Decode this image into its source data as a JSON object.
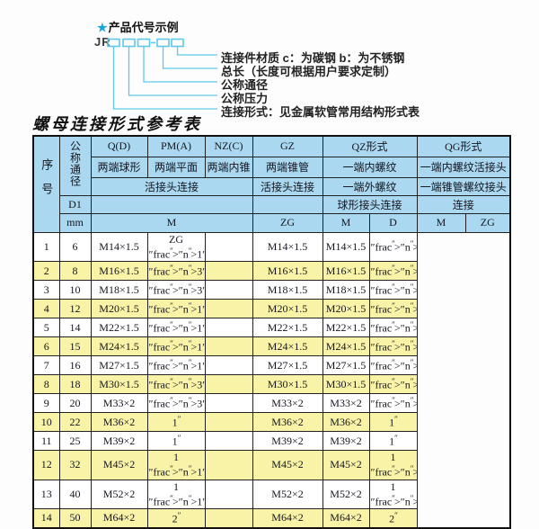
{
  "colors": {
    "header_blue": "#a9d8f0",
    "row_yellow": "#f8f3a6",
    "line_cyan": "#5fc8e8",
    "star_blue": "#18a6da"
  },
  "diagram": {
    "star": "★",
    "title": "产品代号示例",
    "prefix": "JR",
    "labels": [
      "连接件材质  c：为碳钢  b：为不锈钢",
      "总长（长度可根据用户要求定制）",
      "公称通径",
      "公称压力",
      "连接形式：见金属软管常用结构形式表"
    ]
  },
  "table_title": "螺母连接形式参考表",
  "table": {
    "header": {
      "seq": "序号",
      "dn": "公称通径",
      "d1": "D1",
      "mm": "mm",
      "q": "Q(D)",
      "q_sub": "两端球形",
      "pm": "PM(A)",
      "pm_sub": "两端平面",
      "nz": "NZ(C)",
      "nz_sub": "两端内锥",
      "union_conn": "活接头连接",
      "m_label": "M",
      "gz": "GZ",
      "gz_sub": "两端锥管",
      "gz_conn": "活接头连接",
      "gz_thread": "ZG",
      "qz": "QZ形式",
      "qz_sub1": "一端内螺纹",
      "qz_sub2": "一端外螺纹",
      "qz_conn": "球形接头连接",
      "qz_m": "M",
      "qz_d": "D",
      "qg": "QG形式",
      "qg_sub1": "一端内螺纹活接头",
      "qg_sub2": "一端锥管螺纹接头",
      "qg_conn": "连接",
      "qg_m": "M",
      "qg_zg": "ZG"
    },
    "rows": [
      {
        "no": "1",
        "mm": "6",
        "m": "M14×1.5",
        "gz": "ZG 1/4\"",
        "qz_m": "",
        "qz_d": "M14×1.5",
        "qg_m": "M14×1.5",
        "qg_zg": "1/4\""
      },
      {
        "no": "2",
        "mm": "8",
        "m": "M16×1.5",
        "gz": "3/8\"",
        "qz_m": "",
        "qz_d": "M16×1.5",
        "qg_m": "M16×1.5",
        "qg_zg": "3/8\""
      },
      {
        "no": "3",
        "mm": "10",
        "m": "M18×1.5",
        "gz": "3/8\"",
        "qz_m": "",
        "qz_d": "M18×1.5",
        "qg_m": "M18×1.5",
        "qg_zg": "3/8\""
      },
      {
        "no": "4",
        "mm": "12",
        "m": "M20×1.5",
        "gz": "1/2\"",
        "qz_m": "",
        "qz_d": "M20×1.5",
        "qg_m": "M20×1.5",
        "qg_zg": "1/2\""
      },
      {
        "no": "5",
        "mm": "14",
        "m": "M22×1.5",
        "gz": "1/2\"",
        "qz_m": "",
        "qz_d": "M22×1.5",
        "qg_m": "M22×1.5",
        "qg_zg": "1/2\""
      },
      {
        "no": "6",
        "mm": "15",
        "m": "M24×1.5",
        "gz": "1/2\"",
        "qz_m": "",
        "qz_d": "M24×1.5",
        "qg_m": "M24×1.5",
        "qg_zg": "1/2\""
      },
      {
        "no": "7",
        "mm": "16",
        "m": "M27×1.5",
        "gz": "1/2\"",
        "qz_m": "",
        "qz_d": "M27×1.5",
        "qg_m": "M27×1.5",
        "qg_zg": "1/2\""
      },
      {
        "no": "8",
        "mm": "18",
        "m": "M30×1.5",
        "gz": "3/4\"",
        "qz_m": "",
        "qz_d": "M30×1.5",
        "qg_m": "M30×1.5",
        "qg_zg": "3/4\""
      },
      {
        "no": "9",
        "mm": "20",
        "m": "M33×2",
        "gz": "3/4\"",
        "qz_m": "",
        "qz_d": "M33×2",
        "qg_m": "M33×2",
        "qg_zg": "3/4\""
      },
      {
        "no": "10",
        "mm": "22",
        "m": "M36×2",
        "gz": "1\"",
        "qz_m": "",
        "qz_d": "M36×2",
        "qg_m": "M36×2",
        "qg_zg": "1\""
      },
      {
        "no": "11",
        "mm": "25",
        "m": "M39×2",
        "gz": "1\"",
        "qz_m": "",
        "qz_d": "M39×2",
        "qg_m": "M39×2",
        "qg_zg": "1\""
      },
      {
        "no": "12",
        "mm": "32",
        "m": "M45×2",
        "gz": "1 1/4\"",
        "qz_m": "",
        "qz_d": "M45×2",
        "qg_m": "M45×2",
        "qg_zg": "1 1/4\""
      },
      {
        "no": "13",
        "mm": "40",
        "m": "M52×2",
        "gz": "1 1/2\"",
        "qz_m": "",
        "qz_d": "M52×2",
        "qg_m": "M52×2",
        "qg_zg": "1 1/2\""
      },
      {
        "no": "14",
        "mm": "50",
        "m": "M64×2",
        "gz": "2\"",
        "qz_m": "",
        "qz_d": "M64×2",
        "qg_m": "M64×2",
        "qg_zg": "2\""
      }
    ]
  }
}
